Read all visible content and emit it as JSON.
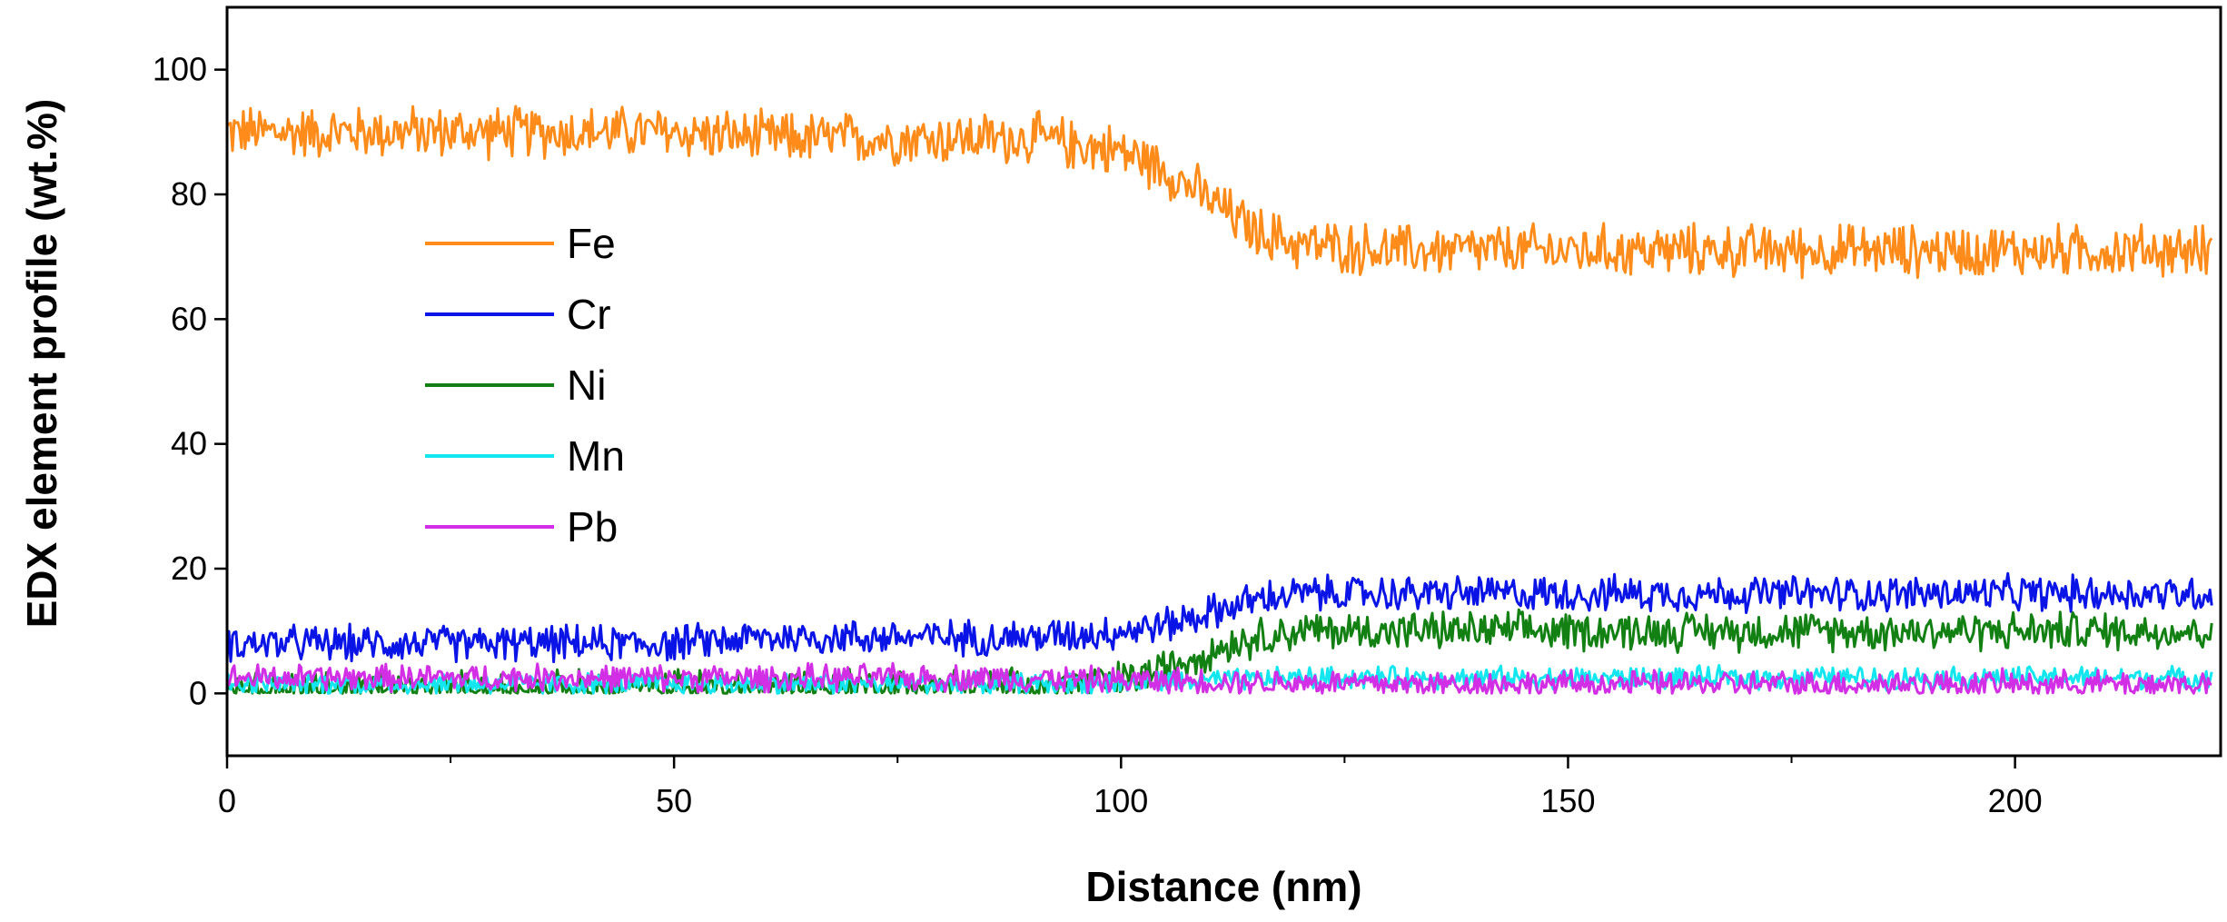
{
  "chart_data": {
    "type": "line",
    "xlabel": "Distance (nm)",
    "ylabel": "EDX element profile (wt.%)",
    "xlim": [
      0,
      223
    ],
    "ylim": [
      -10,
      110
    ],
    "x_ticks": [
      0,
      50,
      100,
      150,
      200
    ],
    "y_ticks": [
      0,
      20,
      40,
      60,
      80,
      100
    ],
    "x_minor_step": 25,
    "y_minor_step": 10,
    "grid": false,
    "legend_position": "left",
    "x": [
      0,
      10,
      20,
      30,
      40,
      50,
      60,
      70,
      80,
      90,
      100,
      105,
      110,
      115,
      120,
      130,
      140,
      150,
      160,
      170,
      180,
      190,
      200,
      210,
      222
    ],
    "series": [
      {
        "name": "Fe",
        "color": "#ff8c1a",
        "noise": 3.5,
        "values": [
          90,
          90,
          90,
          90,
          90,
          90,
          89,
          89,
          89,
          89,
          87,
          84,
          79,
          74,
          72,
          71,
          71,
          71,
          71,
          71,
          71,
          71,
          71,
          71,
          71
        ]
      },
      {
        "name": "Cr",
        "color": "#0a14e6",
        "noise": 2.4,
        "values": [
          8,
          8,
          8,
          8,
          8,
          8,
          9,
          9,
          9,
          9,
          10,
          11,
          13,
          15,
          16,
          16,
          16,
          16,
          16,
          16,
          16,
          16,
          16,
          16,
          16
        ]
      },
      {
        "name": "Ni",
        "color": "#138013",
        "noise": 2.6,
        "values": [
          0.5,
          0.5,
          0.5,
          0.5,
          0.5,
          0.8,
          1,
          1,
          1,
          1,
          2,
          4,
          7,
          9,
          10,
          10,
          10,
          10,
          10,
          10,
          10,
          10,
          10,
          10,
          10
        ]
      },
      {
        "name": "Mn",
        "color": "#14e6f0",
        "noise": 1.5,
        "values": [
          1.5,
          1.5,
          1.5,
          1.5,
          1.5,
          1.5,
          1.5,
          1.5,
          1.5,
          1.5,
          1.5,
          1.8,
          2,
          2.2,
          2.5,
          2.5,
          2.5,
          2.5,
          2.5,
          2.5,
          2.5,
          2.5,
          2.5,
          2.5,
          2.5
        ]
      },
      {
        "name": "Pb",
        "color": "#d22ee6",
        "noise": 1.8,
        "values": [
          2.5,
          2.5,
          2.5,
          2.5,
          2.5,
          2.5,
          2.5,
          2.5,
          2.5,
          2.5,
          2,
          2,
          2,
          1.8,
          1.8,
          1.5,
          1.5,
          1.5,
          1.5,
          1.5,
          1.5,
          1.5,
          1.5,
          1.5,
          1.5
        ]
      }
    ]
  }
}
